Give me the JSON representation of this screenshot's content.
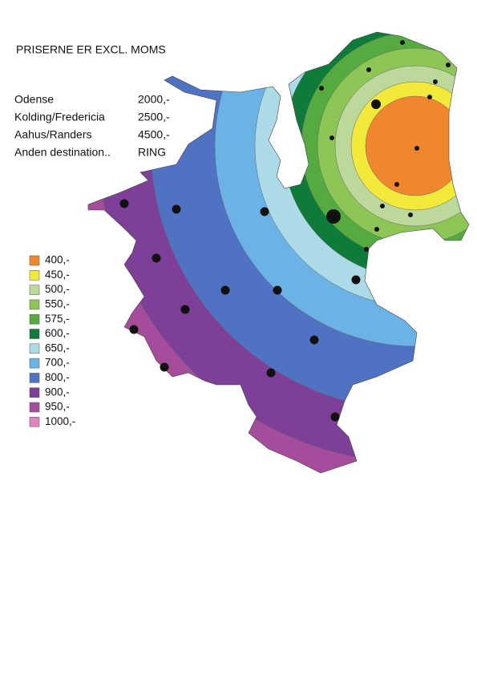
{
  "title": "PRISERNE ER EXCL. MOMS",
  "destinations": [
    {
      "name": "Odense",
      "price": "2000,-"
    },
    {
      "name": "Kolding/Fredericia",
      "price": "2500,-"
    },
    {
      "name": "Aahus/Randers",
      "price": "4500,-"
    },
    {
      "name": "Anden destination..",
      "price": "RING"
    }
  ],
  "legend": [
    {
      "label": "400,-",
      "color": "#f0872f"
    },
    {
      "label": "450,-",
      "color": "#f3e93a"
    },
    {
      "label": "500,-",
      "color": "#bcd89a"
    },
    {
      "label": "550,-",
      "color": "#8dc556"
    },
    {
      "label": "575,-",
      "color": "#55ab3f"
    },
    {
      "label": "600,-",
      "color": "#0e7b3b"
    },
    {
      "label": "650,-",
      "color": "#acdbe7"
    },
    {
      "label": "700,-",
      "color": "#6bb3e6"
    },
    {
      "label": "800,-",
      "color": "#4f72c2"
    },
    {
      "label": "900,-",
      "color": "#7d3f98"
    },
    {
      "label": "950,-",
      "color": "#a54c9c"
    },
    {
      "label": "1000,-",
      "color": "#e385bd"
    }
  ]
}
